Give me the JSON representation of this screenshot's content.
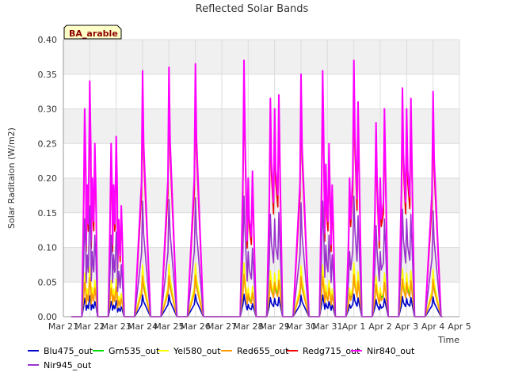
{
  "chart_data": {
    "type": "line",
    "title": "Reflected Solar Bands",
    "badge": "BA_arable",
    "xlabel": "Time",
    "ylabel": "Solar Raditaion (W/m2)",
    "ylim": [
      0,
      0.4
    ],
    "yticks": [
      "0.00",
      "0.05",
      "0.10",
      "0.15",
      "0.20",
      "0.25",
      "0.30",
      "0.35",
      "0.40"
    ],
    "xlim": [
      0,
      15
    ],
    "xticks": [
      "Mar 21",
      "Mar 22",
      "Mar 23",
      "Mar 24",
      "Mar 25",
      "Mar 26",
      "Mar 27",
      "Mar 28",
      "Mar 29",
      "Mar 30",
      "Mar 31",
      "Apr 1",
      "Apr 2",
      "Apr 3",
      "Apr 4",
      "Apr 5"
    ],
    "grid": true,
    "legend_position": "bottom",
    "colors": {
      "background": "#ffffff",
      "plot_band": "#f0f0f0",
      "grid": "#dcdcdc",
      "badge_fill": "#ffffc8",
      "badge_text": "#8b0000"
    },
    "days": [
      {
        "date": "Mar 22",
        "peaks": [
          0.3,
          0.19,
          0.34,
          0.2,
          0.25
        ]
      },
      {
        "date": "Mar 23",
        "peaks": [
          0.25,
          0.19,
          0.26,
          0.14,
          0.16
        ]
      },
      {
        "date": "Mar 24",
        "peaks": [
          0.355
        ]
      },
      {
        "date": "Mar 25",
        "peaks": [
          0.36
        ]
      },
      {
        "date": "Mar 26",
        "peaks": [
          0.365
        ]
      },
      {
        "date": "Mar 28",
        "peaks": [
          0.37,
          0.2,
          0.21
        ]
      },
      {
        "date": "Mar 29",
        "peaks": [
          0.315,
          0.3,
          0.32
        ]
      },
      {
        "date": "Mar 30",
        "peaks": [
          0.35
        ]
      },
      {
        "date": "Mar 31",
        "peaks": [
          0.355,
          0.22,
          0.25,
          0.19
        ]
      },
      {
        "date": "Apr 1",
        "peaks": [
          0.2,
          0.37,
          0.31
        ]
      },
      {
        "date": "Apr 2",
        "peaks": [
          0.28,
          0.2,
          0.3
        ]
      },
      {
        "date": "Apr 3",
        "peaks": [
          0.33,
          0.3,
          0.315
        ]
      },
      {
        "date": "Apr 4",
        "peaks": [
          0.325
        ]
      }
    ],
    "series": [
      {
        "name": "Blu475_out",
        "color": "#0000cc",
        "scale": 0.088
      },
      {
        "name": "Grn535_out",
        "color": "#00dd00",
        "scale": 0.19
      },
      {
        "name": "Yel580_out",
        "color": "#ffff00",
        "scale": 0.21
      },
      {
        "name": "Red655_out",
        "color": "#ff9900",
        "scale": 0.165
      },
      {
        "name": "Redg715_out",
        "color": "#ee0000",
        "scale": 0.9
      },
      {
        "name": "Nir840_out",
        "color": "#ff00ff",
        "scale": 1.0
      },
      {
        "name": "Nir945_out",
        "color": "#9933cc",
        "scale": 0.47
      }
    ]
  }
}
